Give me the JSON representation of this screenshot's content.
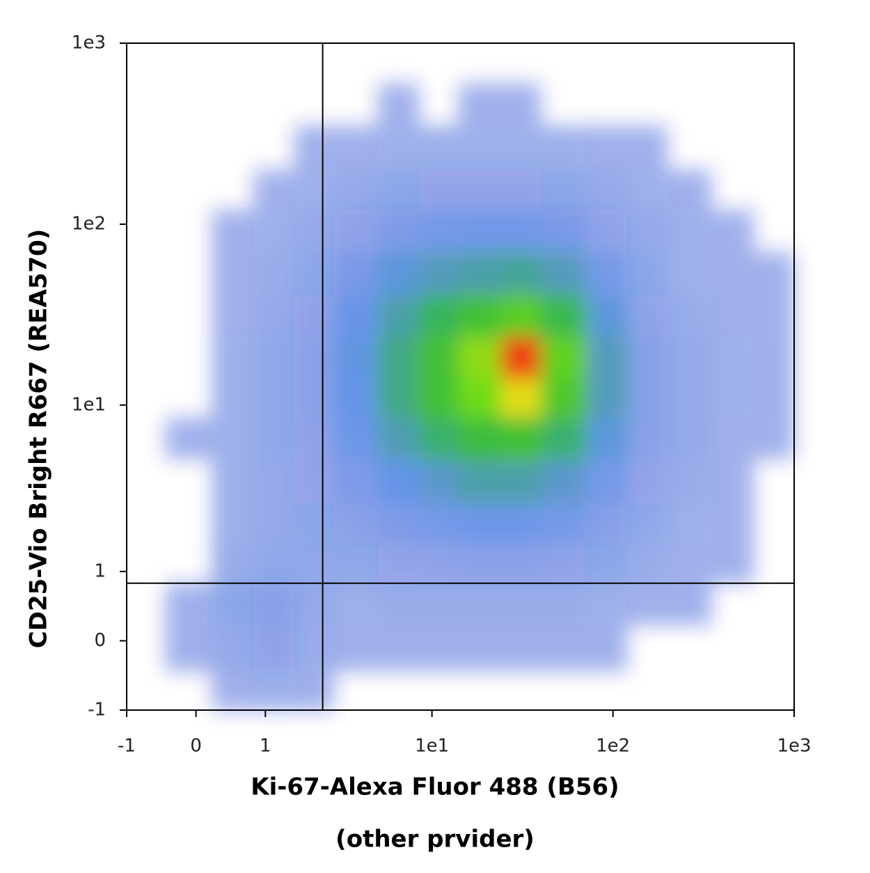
{
  "chart_data": {
    "type": "density",
    "ylabel": "CD25-Vio Bright R667 (REA570)",
    "xlabel": [
      "Ki-67-Alexa Fluor 488 (B56)",
      "(other prvider)"
    ],
    "scale": "arcsinh",
    "xlim": [
      -1,
      1000
    ],
    "ylim": [
      -1,
      1000
    ],
    "xticks": [
      -1,
      0,
      1,
      {
        "value": 10,
        "label": "1e1"
      },
      {
        "value": 100,
        "label": "1e2"
      },
      {
        "value": 1000,
        "label": "1e3"
      }
    ],
    "yticks": [
      -1,
      0,
      1,
      {
        "value": 10,
        "label": "1e1"
      },
      {
        "value": 100,
        "label": "1e2"
      },
      {
        "value": 1000,
        "label": "1e3"
      }
    ],
    "gates": {
      "x": 2.4,
      "y": 0.8
    },
    "bins_x": [
      -1,
      -0.4,
      0.2,
      0.8,
      1.6,
      2.8,
      5,
      8.5,
      14,
      24,
      40,
      70,
      120,
      200,
      350,
      600,
      1000
    ],
    "bins_y": [
      -1,
      -0.4,
      0.2,
      0.8,
      1.6,
      2.8,
      5,
      8.5,
      14,
      24,
      40,
      70,
      120,
      200,
      350,
      600,
      1000
    ],
    "counts": [
      [
        0,
        0,
        1,
        2,
        1,
        0,
        0,
        0,
        0,
        0,
        0,
        0,
        0,
        0,
        0,
        0
      ],
      [
        0,
        1,
        4,
        8,
        3,
        1,
        1,
        1,
        1,
        1,
        1,
        1,
        0,
        0,
        0,
        0
      ],
      [
        0,
        1,
        6,
        10,
        4,
        2,
        3,
        3,
        3,
        3,
        3,
        2,
        1,
        1,
        0,
        0
      ],
      [
        0,
        0,
        3,
        5,
        5,
        5,
        7,
        8,
        9,
        9,
        8,
        6,
        3,
        1,
        1,
        0
      ],
      [
        0,
        0,
        2,
        4,
        6,
        9,
        12,
        14,
        16,
        16,
        14,
        10,
        5,
        2,
        1,
        0
      ],
      [
        0,
        0,
        2,
        4,
        7,
        12,
        18,
        22,
        26,
        26,
        22,
        14,
        7,
        3,
        1,
        0
      ],
      [
        0,
        1,
        2,
        5,
        8,
        16,
        25,
        32,
        38,
        40,
        32,
        20,
        9,
        4,
        1,
        1
      ],
      [
        0,
        0,
        2,
        5,
        9,
        18,
        30,
        40,
        48,
        55,
        42,
        24,
        10,
        4,
        2,
        1
      ],
      [
        0,
        0,
        2,
        5,
        9,
        19,
        30,
        40,
        50,
        60,
        45,
        24,
        10,
        4,
        2,
        1
      ],
      [
        0,
        0,
        1,
        4,
        8,
        17,
        26,
        34,
        40,
        44,
        36,
        20,
        8,
        3,
        1,
        1
      ],
      [
        0,
        0,
        1,
        3,
        6,
        13,
        20,
        24,
        26,
        28,
        24,
        14,
        6,
        2,
        1,
        1
      ],
      [
        0,
        0,
        1,
        2,
        4,
        8,
        12,
        14,
        15,
        15,
        13,
        8,
        4,
        2,
        1,
        0
      ],
      [
        0,
        0,
        0,
        1,
        2,
        4,
        6,
        7,
        7,
        7,
        6,
        4,
        2,
        1,
        0,
        0
      ],
      [
        0,
        0,
        0,
        0,
        1,
        1,
        2,
        2,
        2,
        2,
        2,
        1,
        1,
        0,
        0,
        0
      ],
      [
        0,
        0,
        0,
        0,
        0,
        0,
        1,
        0,
        1,
        1,
        0,
        0,
        0,
        0,
        0,
        0
      ],
      [
        0,
        0,
        0,
        0,
        0,
        0,
        0,
        0,
        0,
        0,
        0,
        0,
        0,
        0,
        0,
        0
      ]
    ]
  }
}
